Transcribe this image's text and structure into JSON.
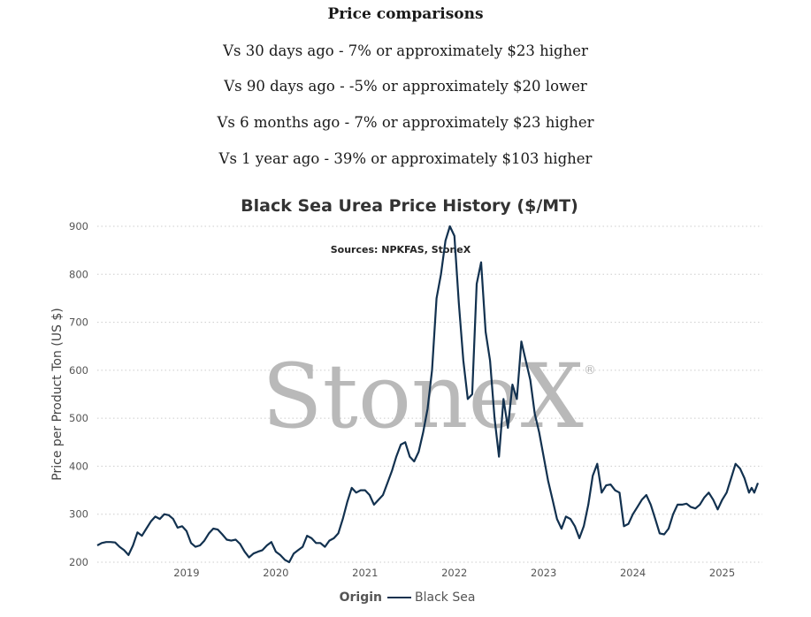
{
  "comparisons": {
    "heading": "Price comparisons",
    "lines": [
      "Vs 30 days ago - 7% or approximately $23 higher",
      "Vs 90 days ago - -5% or approximately $20 lower",
      "Vs 6 months ago - 7% or approximately $23 higher",
      "Vs 1 year ago - 39% or approximately $103 higher"
    ]
  },
  "watermark": {
    "text": "StoneX",
    "mark": "®"
  },
  "chart_data": {
    "type": "line",
    "title": "Black Sea Urea Price History ($/MT)",
    "subtitle": "Sources: NPKFAS, StoneX",
    "xlabel": "",
    "ylabel": "Price per Product Ton (US $)",
    "xlim": [
      2018.0,
      2025.45
    ],
    "ylim": [
      200,
      900
    ],
    "yticks": [
      200,
      300,
      400,
      500,
      600,
      700,
      800,
      900
    ],
    "xticks": [
      {
        "value": 2019.0,
        "label": "2019"
      },
      {
        "value": 2020.0,
        "label": "2020"
      },
      {
        "value": 2021.0,
        "label": "2021"
      },
      {
        "value": 2022.0,
        "label": "2022"
      },
      {
        "value": 2023.0,
        "label": "2023"
      },
      {
        "value": 2024.0,
        "label": "2024"
      },
      {
        "value": 2025.0,
        "label": "2025"
      }
    ],
    "grid": true,
    "legend": {
      "title": "Origin",
      "position": "bottom"
    },
    "colors": {
      "line": "#12314f"
    },
    "series": [
      {
        "name": "Black Sea",
        "points": [
          [
            2018.0,
            235
          ],
          [
            2018.05,
            240
          ],
          [
            2018.1,
            242
          ],
          [
            2018.15,
            242
          ],
          [
            2018.2,
            241
          ],
          [
            2018.25,
            232
          ],
          [
            2018.3,
            225
          ],
          [
            2018.35,
            215
          ],
          [
            2018.4,
            235
          ],
          [
            2018.45,
            262
          ],
          [
            2018.5,
            255
          ],
          [
            2018.55,
            270
          ],
          [
            2018.6,
            285
          ],
          [
            2018.65,
            295
          ],
          [
            2018.7,
            290
          ],
          [
            2018.75,
            300
          ],
          [
            2018.8,
            298
          ],
          [
            2018.85,
            290
          ],
          [
            2018.9,
            272
          ],
          [
            2018.95,
            275
          ],
          [
            2019.0,
            265
          ],
          [
            2019.05,
            240
          ],
          [
            2019.1,
            232
          ],
          [
            2019.15,
            235
          ],
          [
            2019.2,
            245
          ],
          [
            2019.25,
            260
          ],
          [
            2019.3,
            270
          ],
          [
            2019.35,
            268
          ],
          [
            2019.4,
            258
          ],
          [
            2019.45,
            247
          ],
          [
            2019.5,
            245
          ],
          [
            2019.55,
            247
          ],
          [
            2019.6,
            238
          ],
          [
            2019.65,
            222
          ],
          [
            2019.7,
            210
          ],
          [
            2019.75,
            218
          ],
          [
            2019.8,
            222
          ],
          [
            2019.85,
            225
          ],
          [
            2019.9,
            235
          ],
          [
            2019.95,
            242
          ],
          [
            2020.0,
            222
          ],
          [
            2020.05,
            215
          ],
          [
            2020.1,
            205
          ],
          [
            2020.15,
            200
          ],
          [
            2020.2,
            218
          ],
          [
            2020.25,
            225
          ],
          [
            2020.3,
            232
          ],
          [
            2020.35,
            255
          ],
          [
            2020.4,
            250
          ],
          [
            2020.45,
            240
          ],
          [
            2020.5,
            240
          ],
          [
            2020.55,
            232
          ],
          [
            2020.6,
            245
          ],
          [
            2020.65,
            250
          ],
          [
            2020.7,
            260
          ],
          [
            2020.75,
            290
          ],
          [
            2020.8,
            325
          ],
          [
            2020.85,
            355
          ],
          [
            2020.9,
            345
          ],
          [
            2020.95,
            350
          ],
          [
            2021.0,
            350
          ],
          [
            2021.05,
            340
          ],
          [
            2021.1,
            320
          ],
          [
            2021.15,
            330
          ],
          [
            2021.2,
            340
          ],
          [
            2021.25,
            365
          ],
          [
            2021.3,
            390
          ],
          [
            2021.35,
            420
          ],
          [
            2021.4,
            445
          ],
          [
            2021.45,
            450
          ],
          [
            2021.5,
            420
          ],
          [
            2021.55,
            410
          ],
          [
            2021.6,
            430
          ],
          [
            2021.65,
            470
          ],
          [
            2021.7,
            520
          ],
          [
            2021.75,
            600
          ],
          [
            2021.8,
            750
          ],
          [
            2021.85,
            800
          ],
          [
            2021.9,
            870
          ],
          [
            2021.95,
            900
          ],
          [
            2022.0,
            880
          ],
          [
            2022.05,
            740
          ],
          [
            2022.1,
            620
          ],
          [
            2022.15,
            540
          ],
          [
            2022.2,
            550
          ],
          [
            2022.25,
            780
          ],
          [
            2022.3,
            825
          ],
          [
            2022.35,
            680
          ],
          [
            2022.4,
            620
          ],
          [
            2022.45,
            500
          ],
          [
            2022.5,
            420
          ],
          [
            2022.55,
            540
          ],
          [
            2022.6,
            480
          ],
          [
            2022.65,
            570
          ],
          [
            2022.7,
            540
          ],
          [
            2022.75,
            660
          ],
          [
            2022.8,
            620
          ],
          [
            2022.85,
            580
          ],
          [
            2022.9,
            510
          ],
          [
            2022.95,
            470
          ],
          [
            2023.0,
            420
          ],
          [
            2023.05,
            370
          ],
          [
            2023.1,
            330
          ],
          [
            2023.15,
            290
          ],
          [
            2023.2,
            270
          ],
          [
            2023.25,
            295
          ],
          [
            2023.3,
            290
          ],
          [
            2023.35,
            275
          ],
          [
            2023.4,
            250
          ],
          [
            2023.45,
            275
          ],
          [
            2023.5,
            320
          ],
          [
            2023.55,
            380
          ],
          [
            2023.6,
            405
          ],
          [
            2023.65,
            345
          ],
          [
            2023.7,
            360
          ],
          [
            2023.75,
            362
          ],
          [
            2023.8,
            350
          ],
          [
            2023.85,
            345
          ],
          [
            2023.9,
            275
          ],
          [
            2023.95,
            280
          ],
          [
            2024.0,
            300
          ],
          [
            2024.05,
            315
          ],
          [
            2024.1,
            330
          ],
          [
            2024.15,
            340
          ],
          [
            2024.2,
            320
          ],
          [
            2024.25,
            290
          ],
          [
            2024.3,
            260
          ],
          [
            2024.35,
            258
          ],
          [
            2024.4,
            270
          ],
          [
            2024.45,
            300
          ],
          [
            2024.5,
            320
          ],
          [
            2024.55,
            320
          ],
          [
            2024.6,
            322
          ],
          [
            2024.65,
            315
          ],
          [
            2024.7,
            312
          ],
          [
            2024.75,
            320
          ],
          [
            2024.8,
            335
          ],
          [
            2024.85,
            345
          ],
          [
            2024.9,
            330
          ],
          [
            2024.95,
            310
          ],
          [
            2025.0,
            330
          ],
          [
            2025.05,
            345
          ],
          [
            2025.1,
            375
          ],
          [
            2025.15,
            405
          ],
          [
            2025.2,
            395
          ],
          [
            2025.25,
            375
          ],
          [
            2025.3,
            345
          ],
          [
            2025.33,
            355
          ],
          [
            2025.36,
            345
          ],
          [
            2025.4,
            365
          ]
        ]
      }
    ]
  }
}
